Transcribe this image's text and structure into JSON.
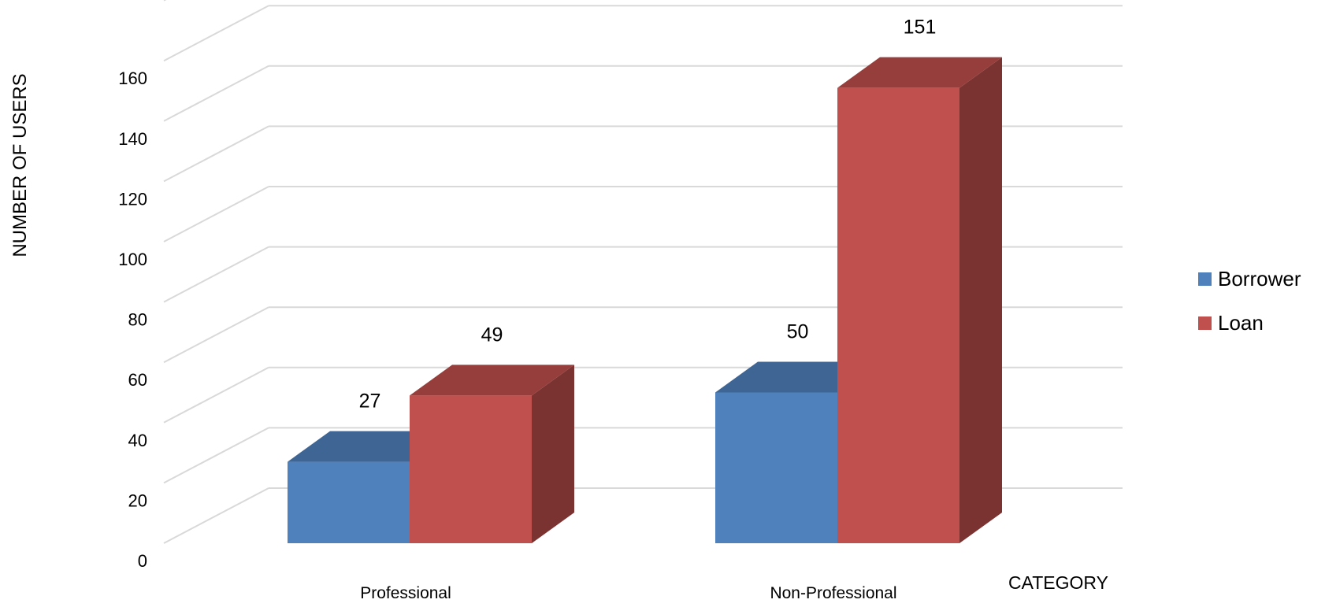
{
  "chart_data": {
    "type": "bar",
    "categories": [
      "Professional",
      "Non-Professional"
    ],
    "series": [
      {
        "name": "Borrower",
        "values": [
          27,
          50
        ],
        "color": "#4F81BD"
      },
      {
        "name": "Loan",
        "values": [
          49,
          151
        ],
        "color": "#C0504D"
      }
    ],
    "xlabel": "CATEGORY",
    "ylabel": "NUMBER OF USERS",
    "ylim": [
      0,
      180
    ],
    "yticks": [
      0,
      20,
      40,
      60,
      80,
      100,
      120,
      140,
      160
    ],
    "grid": true,
    "style": "3d-column",
    "legend_position": "right"
  }
}
